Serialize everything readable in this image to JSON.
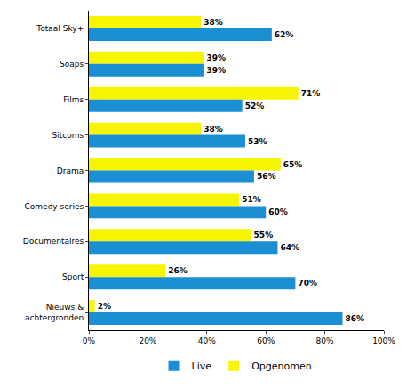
{
  "chart_data": {
    "type": "bar",
    "orientation": "horizontal",
    "categories": [
      "Totaal Sky+",
      "Soaps",
      "Films",
      "Sitcoms",
      "Drama",
      "Comedy series",
      "Documentaires",
      "Sport",
      "Nieuws &\nachtergronden"
    ],
    "series": [
      {
        "name": "Live",
        "color": "#1a8fd3",
        "values": [
          62,
          39,
          52,
          53,
          56,
          60,
          64,
          70,
          86
        ],
        "value_labels": [
          "62%",
          "39%",
          "52%",
          "53%",
          "56%",
          "60%",
          "64%",
          "70%",
          "86%"
        ]
      },
      {
        "name": "Opgenomen",
        "color": "#f7f500",
        "values": [
          38,
          39,
          71,
          38,
          65,
          51,
          55,
          26,
          2
        ],
        "value_labels": [
          "38%",
          "39%",
          "71%",
          "38%",
          "65%",
          "51%",
          "55%",
          "26%",
          "2%"
        ]
      }
    ],
    "xlim": [
      0,
      100
    ],
    "xticks": [
      {
        "value": 0,
        "label": "0%"
      },
      {
        "value": 20,
        "label": "20%"
      },
      {
        "value": 40,
        "label": "40%"
      },
      {
        "value": 60,
        "label": "60%"
      },
      {
        "value": 80,
        "label": "80%"
      },
      {
        "value": 100,
        "label": "100%"
      }
    ],
    "data_labels": true,
    "grid": false,
    "legend": "bottom"
  }
}
